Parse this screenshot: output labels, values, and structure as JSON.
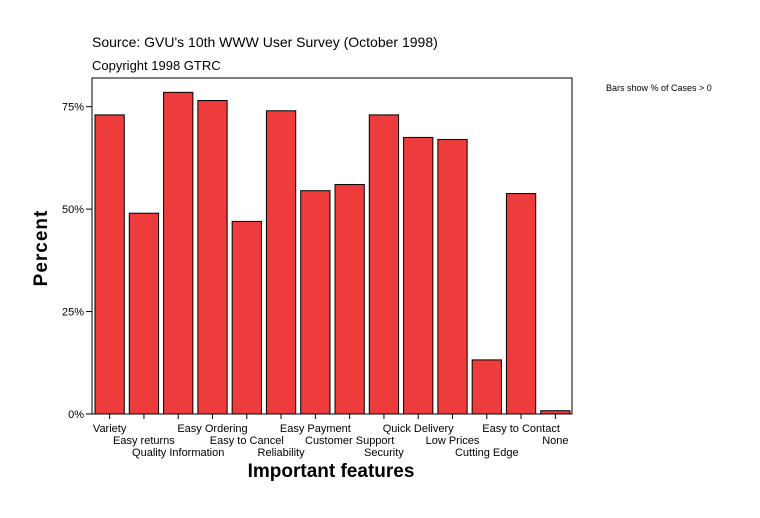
{
  "source_line": "Source: GVU's 10th WWW User Survey (October 1998)",
  "copyright_line": "Copyright 1998 GTRC",
  "note": "Bars show % of Cases > 0",
  "chart_data": {
    "type": "bar",
    "xlabel": "Important features",
    "ylabel": "Percent",
    "ylim": [
      0,
      82
    ],
    "yticks": [
      0,
      25,
      50,
      75
    ],
    "ytick_labels": [
      "0%",
      "25%",
      "50%",
      "75%"
    ],
    "grid": false,
    "bar_color": "#ee3b3b",
    "categories": [
      "Variety",
      "Easy returns",
      "Quality Information",
      "Easy Ordering",
      "Easy to Cancel",
      "Reliability",
      "Easy Payment",
      "Customer Support",
      "Security",
      "Quick Delivery",
      "Low Prices",
      "Cutting Edge",
      "Easy to Contact",
      "None"
    ],
    "values": [
      73,
      49,
      78.5,
      76.5,
      47,
      74,
      54.5,
      56,
      73,
      67.5,
      67,
      13.2,
      53.8,
      0.8
    ]
  }
}
